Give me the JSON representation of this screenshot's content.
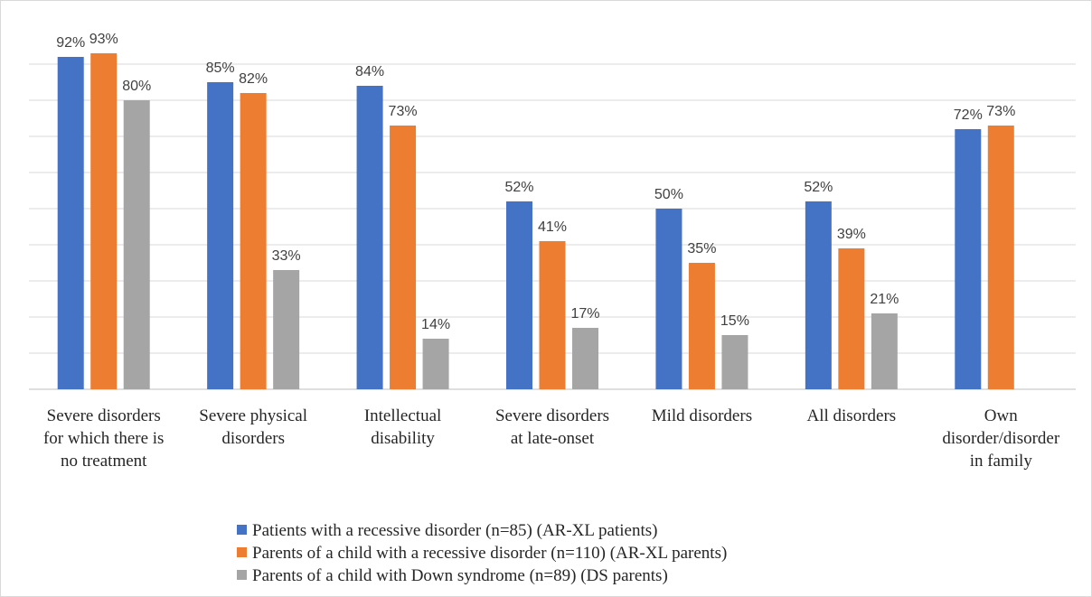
{
  "chart_data": {
    "type": "bar",
    "categories": [
      "Severe disorders for which there is no treatment",
      "Severe physical disorders",
      "Intellectual disability",
      "Severe disorders at late-onset",
      "Mild disorders",
      "All disorders",
      "Own disorder/disorder in family"
    ],
    "series": [
      {
        "name": "Patients with a recessive disorder (n=85) (AR-XL patients)",
        "color": "#4472c4",
        "values": [
          92,
          85,
          84,
          52,
          50,
          52,
          72
        ],
        "value_labels": [
          "92%",
          "85%",
          "84%",
          "52%",
          "50%",
          "52%",
          "72%"
        ]
      },
      {
        "name": "Parents of a child with a recessive disorder (n=110) (AR-XL parents)",
        "color": "#ed7d31",
        "values": [
          93,
          82,
          73,
          41,
          35,
          39,
          73
        ],
        "value_labels": [
          "93%",
          "82%",
          "73%",
          "41%",
          "35%",
          "39%",
          "73%"
        ]
      },
      {
        "name": "Parents of a child with Down syndrome (n=89) (DS parents)",
        "color": "#a5a5a5",
        "values": [
          80,
          33,
          14,
          17,
          15,
          21,
          null
        ],
        "value_labels": [
          "80%",
          "33%",
          "14%",
          "17%",
          "15%",
          "21%",
          null
        ]
      }
    ],
    "ylim": [
      0,
      100
    ],
    "yticks": [
      0,
      10,
      20,
      30,
      40,
      50,
      60,
      70,
      80,
      90
    ],
    "grid": true,
    "legend": "bottom"
  }
}
